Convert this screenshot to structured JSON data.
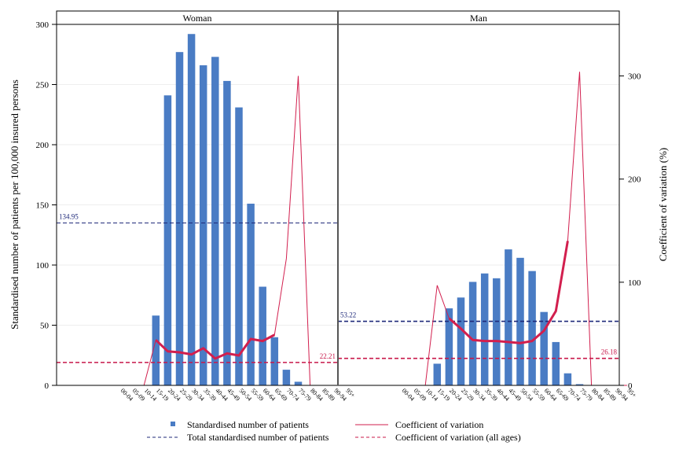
{
  "chart_data": {
    "type": "bar",
    "panels": [
      "Woman",
      "Man"
    ],
    "age_groups": [
      "00-04",
      "05-09",
      "10-14",
      "15-19",
      "20-24",
      "25-29",
      "30-34",
      "35-39",
      "40-44",
      "45-49",
      "50-54",
      "55-59",
      "60-64",
      "65-69",
      "70-74",
      "75-79",
      "80-84",
      "85-89",
      "90-94",
      "95+"
    ],
    "ylabel_left": "Standardised number of patients per 100,000 insured persons",
    "ylabel_right": "Coefficient of variation (%)",
    "ylim_left": [
      0,
      300
    ],
    "yticks_left": [
      "0",
      "50",
      "100",
      "150",
      "200",
      "250",
      "300"
    ],
    "ylim_right": [
      0,
      350
    ],
    "yticks_right": [
      "0",
      "100",
      "200",
      "300"
    ],
    "series": {
      "Woman": {
        "patients": [
          0,
          0,
          0,
          58,
          241,
          277,
          292,
          266,
          273,
          253,
          231,
          151,
          82,
          40,
          13,
          3,
          0,
          0,
          0,
          0
        ],
        "cv": [
          null,
          null,
          null,
          44,
          33,
          32,
          30,
          36,
          26,
          31,
          29,
          45,
          43,
          49,
          null,
          null,
          null,
          null,
          null,
          null
        ],
        "cv_extreme": [
          0,
          0,
          0,
          44,
          33,
          32,
          30,
          36,
          26,
          31,
          29,
          45,
          43,
          49,
          123,
          300,
          0,
          0,
          0,
          0
        ],
        "total_patients": 134.95,
        "cv_all_ages": 22.21,
        "total_label": "134.95",
        "cv_label": "22.21"
      },
      "Man": {
        "patients": [
          0,
          0,
          0,
          18,
          64,
          73,
          86,
          93,
          89,
          113,
          106,
          95,
          61,
          36,
          10,
          1,
          0,
          0,
          0,
          0
        ],
        "cv": [
          null,
          null,
          null,
          null,
          65,
          55,
          44,
          43,
          43,
          42,
          41,
          43,
          53,
          72,
          140,
          null,
          null,
          null,
          null,
          null
        ],
        "cv_extreme": [
          0,
          0,
          0,
          97,
          65,
          55,
          44,
          43,
          43,
          42,
          41,
          43,
          53,
          72,
          140,
          304,
          0,
          0,
          0,
          0
        ],
        "total_patients": 53.22,
        "cv_all_ages": 26.18,
        "total_label": "53.22",
        "cv_label": "26.18"
      }
    },
    "legend": {
      "patients": "Standardised number of patients",
      "total": "Total standardised number of patients",
      "cv": "Coefficient of variation",
      "cv_all": "Coefficient of variation (all ages)"
    },
    "legend_position": "bottom"
  },
  "colors": {
    "bar": "#4a7cc4",
    "cv_line": "#d21f4e",
    "total_line": "#1f2a7a",
    "cv_all_line": "#c8184a",
    "frame": "#000000",
    "grid": "#eeeeee"
  }
}
